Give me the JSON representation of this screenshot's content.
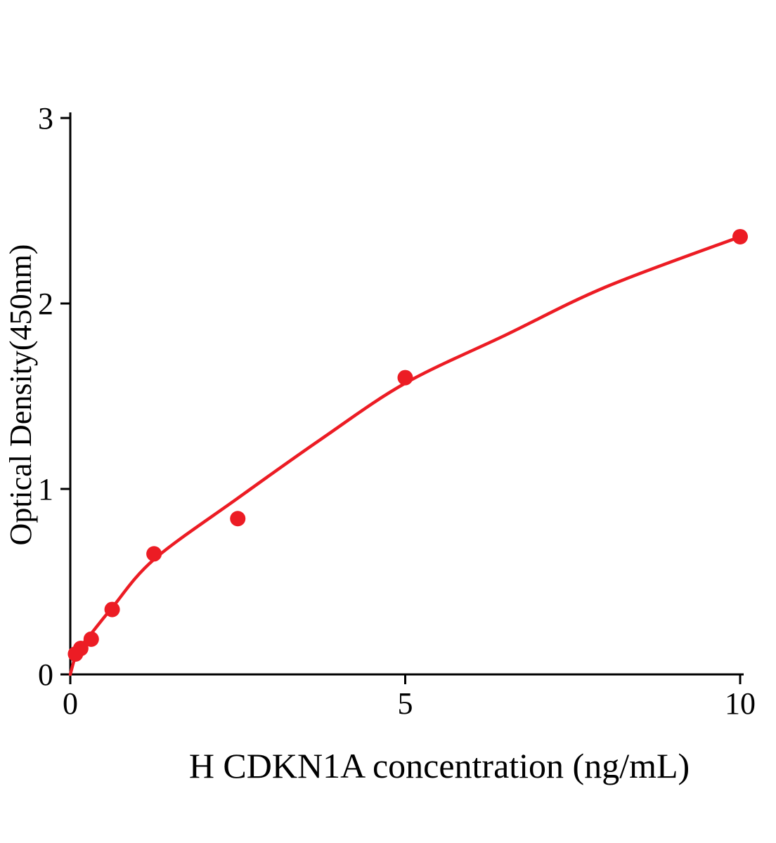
{
  "figure": {
    "background": "#ffffff",
    "text_color": "#000000"
  },
  "chart_data": {
    "type": "scatter",
    "title": "",
    "xlabel": "H CDKN1A concentration (ng/mL)",
    "ylabel": "Optical Density(450nm)",
    "xlim": [
      0,
      10
    ],
    "ylim": [
      0,
      3
    ],
    "x_ticks": [
      0,
      5,
      10
    ],
    "y_ticks": [
      0,
      1,
      2,
      3
    ],
    "grid": false,
    "legend": null,
    "point_color": "#EC1C24",
    "curve_color": "#EC1C24",
    "axis_color": "#000000",
    "points": [
      {
        "x": 0.078,
        "y": 0.11
      },
      {
        "x": 0.156,
        "y": 0.14
      },
      {
        "x": 0.3125,
        "y": 0.19
      },
      {
        "x": 0.625,
        "y": 0.35
      },
      {
        "x": 1.25,
        "y": 0.65
      },
      {
        "x": 2.5,
        "y": 0.84
      },
      {
        "x": 5.0,
        "y": 1.6
      },
      {
        "x": 10.0,
        "y": 2.36
      }
    ],
    "curve_anchors": [
      [
        0,
        0.0
      ],
      [
        0.078,
        0.1
      ],
      [
        0.156,
        0.15
      ],
      [
        0.3125,
        0.22
      ],
      [
        0.625,
        0.36
      ],
      [
        1.25,
        0.62
      ],
      [
        2.5,
        0.95
      ],
      [
        3.75,
        1.27
      ],
      [
        5.0,
        1.57
      ],
      [
        6.5,
        1.83
      ],
      [
        8.0,
        2.09
      ],
      [
        10.0,
        2.36
      ]
    ]
  }
}
